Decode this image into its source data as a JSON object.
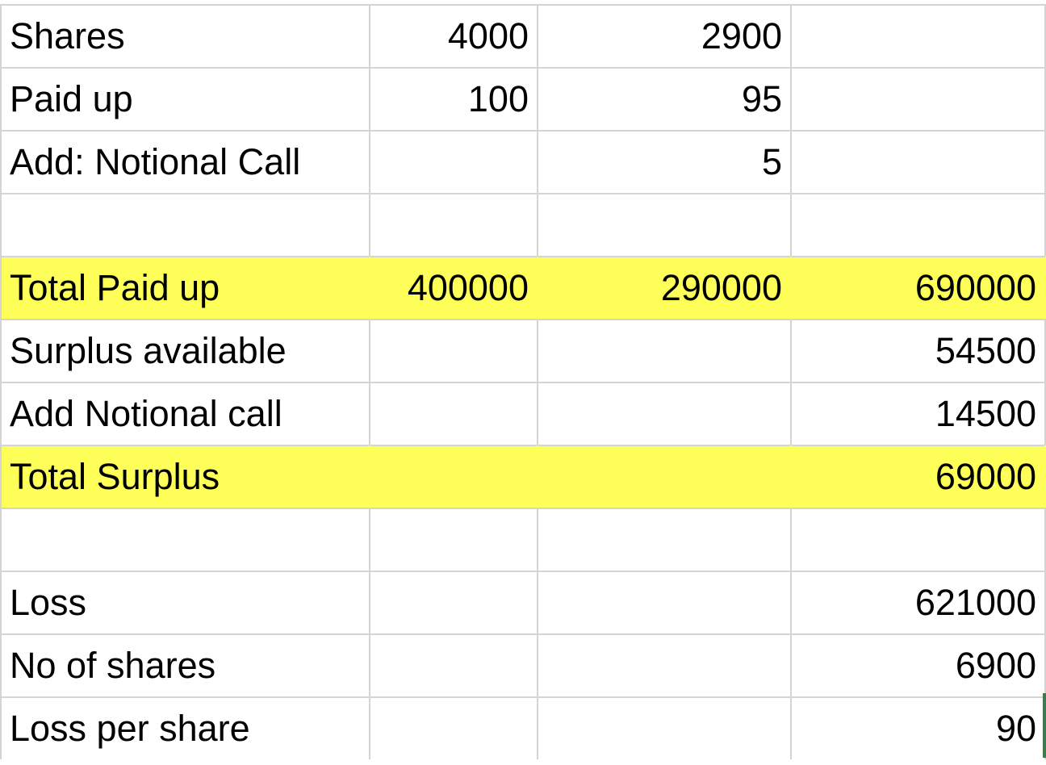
{
  "rows": [
    {
      "label": "Shares",
      "b": "4000",
      "c": "2900",
      "d": "",
      "highlight": false
    },
    {
      "label": "Paid up",
      "b": "100",
      "c": "95",
      "d": "",
      "highlight": false
    },
    {
      "label": "Add: Notional Call",
      "b": "",
      "c": "5",
      "d": "",
      "highlight": false
    },
    {
      "label": "",
      "b": "",
      "c": "",
      "d": "",
      "highlight": false
    },
    {
      "label": "Total Paid up",
      "b": "400000",
      "c": "290000",
      "d": "690000",
      "highlight": true
    },
    {
      "label": "Surplus available",
      "b": "",
      "c": "",
      "d": "54500",
      "highlight": false
    },
    {
      "label": "Add Notional call",
      "b": "",
      "c": "",
      "d": "14500",
      "highlight": false
    },
    {
      "label": "Total Surplus",
      "b": "",
      "c": "",
      "d": "69000",
      "highlight": true
    },
    {
      "label": "",
      "b": "",
      "c": "",
      "d": "",
      "highlight": false
    },
    {
      "label": "Loss",
      "b": "",
      "c": "",
      "d": "621000",
      "highlight": false
    },
    {
      "label": "No of shares",
      "b": "",
      "c": "",
      "d": "6900",
      "highlight": false
    },
    {
      "label": "Loss per share",
      "b": "",
      "c": "",
      "d": "90",
      "highlight": false
    }
  ],
  "colors": {
    "highlight": "#ffff59",
    "gridline": "#d4d4d4",
    "selection": "#3e7a4d"
  }
}
